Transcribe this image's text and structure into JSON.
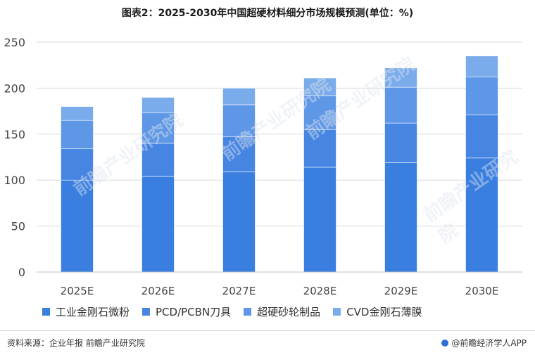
{
  "title": "图表2：2025-2030年中国超硬材料细分市场规模预测(单位：%)",
  "watermark": "前瞻产业研究院",
  "footer": {
    "source": "资料来源：企业年报 前瞻产业研究院",
    "brand": "@前瞻经济学人APP"
  },
  "colors": {
    "工业金刚石微粉": "#3a7fe0",
    "PCD/PCBN刀具": "#4685e2",
    "超硬砂轮制品": "#5e97e6",
    "CVD金刚石薄膜": "#7aabea"
  },
  "chart_data": {
    "type": "bar",
    "stacked": true,
    "categories": [
      "2025E",
      "2026E",
      "2027E",
      "2028E",
      "2029E",
      "2030E"
    ],
    "series": [
      {
        "name": "工业金刚石微粉",
        "values": [
          100,
          104,
          109,
          114,
          119,
          124
        ]
      },
      {
        "name": "PCD/PCBN刀具",
        "values": [
          34,
          36,
          38,
          41,
          43,
          47
        ]
      },
      {
        "name": "超硬砂轮制品",
        "values": [
          31,
          33,
          35,
          37,
          39,
          41
        ]
      },
      {
        "name": "CVD金刚石薄膜",
        "values": [
          15,
          17,
          18,
          19,
          21,
          23
        ]
      }
    ],
    "ylim": [
      0,
      250
    ],
    "yticks": [
      0,
      50,
      100,
      150,
      200,
      250
    ],
    "grid": true,
    "legend": "bottom"
  }
}
